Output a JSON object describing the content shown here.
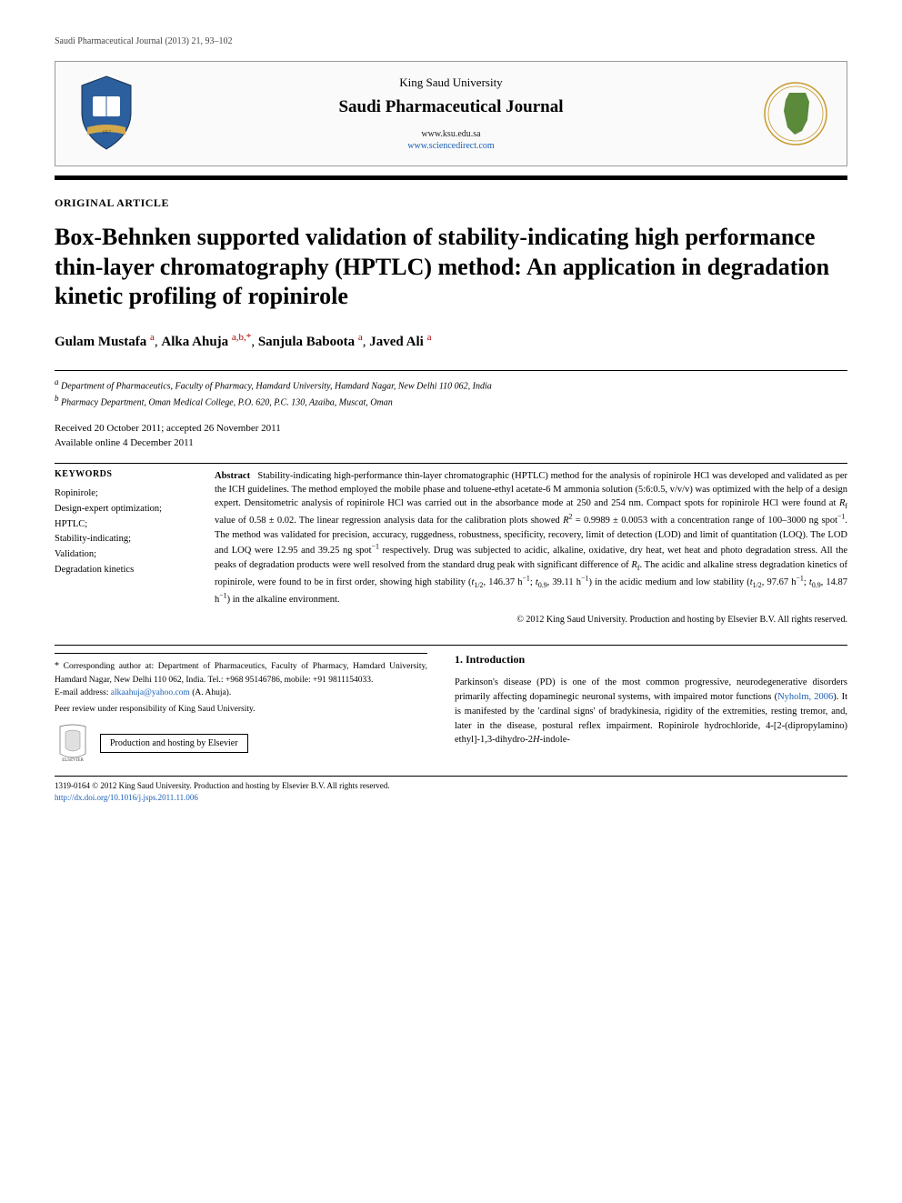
{
  "running_header": "Saudi Pharmaceutical Journal (2013) 21, 93–102",
  "journal_box": {
    "university": "King Saud University",
    "journal": "Saudi Pharmaceutical Journal",
    "url1": "www.ksu.edu.sa",
    "url2": "www.sciencedirect.com",
    "left_logo_colors": {
      "shield": "#2b5f9e",
      "ribbon": "#d4a94a",
      "book": "#ffffff"
    },
    "right_logo_colors": {
      "map": "#5a8a3a",
      "border": "#c79a2e"
    }
  },
  "article_type": "ORIGINAL ARTICLE",
  "title": "Box-Behnken supported validation of stability-indicating high performance thin-layer chromatography (HPTLC) method: An application in degradation kinetic profiling of ropinirole",
  "authors": [
    {
      "name": "Gulam Mustafa",
      "aff": "a"
    },
    {
      "name": "Alka Ahuja",
      "aff": "a,b,*"
    },
    {
      "name": "Sanjula Baboota",
      "aff": "a"
    },
    {
      "name": "Javed Ali",
      "aff": "a"
    }
  ],
  "affiliations": [
    {
      "label": "a",
      "text": "Department of Pharmaceutics, Faculty of Pharmacy, Hamdard University, Hamdard Nagar, New Delhi 110 062, India"
    },
    {
      "label": "b",
      "text": "Pharmacy Department, Oman Medical College, P.O. 620, P.C. 130, Azaiba, Muscat, Oman"
    }
  ],
  "dates": {
    "received_accepted": "Received 20 October 2011; accepted 26 November 2011",
    "online": "Available online 4 December 2011"
  },
  "keywords_heading": "KEYWORDS",
  "keywords": [
    "Ropinirole;",
    "Design-expert optimization;",
    "HPTLC;",
    "Stability-indicating;",
    "Validation;",
    "Degradation kinetics"
  ],
  "abstract": {
    "label": "Abstract",
    "body_html": "Stability-indicating high-performance thin-layer chromatographic (HPTLC) method for the analysis of ropinirole HCl was developed and validated as per the ICH guidelines. The method employed the mobile phase and toluene-ethyl acetate-6 M ammonia solution (5:6:0.5, v/v/v) was optimized with the help of a design expert. Densitometric analysis of ropinirole HCl was carried out in the absorbance mode at 250 and 254 nm. Compact spots for ropinirole HCl were found at <i>R</i><sub>f</sub> value of 0.58 ± 0.02. The linear regression analysis data for the calibration plots showed <i>R</i><sup>2</sup> = 0.9989 ± 0.0053 with a concentration range of 100–3000 ng spot<sup>−1</sup>. The method was validated for precision, accuracy, ruggedness, robustness, specificity, recovery, limit of detection (LOD) and limit of quantitation (LOQ). The LOD and LOQ were 12.95 and 39.25 ng spot<sup>−1</sup> respectively. Drug was subjected to acidic, alkaline, oxidative, dry heat, wet heat and photo degradation stress. All the peaks of degradation products were well resolved from the standard drug peak with significant difference of <i>R</i><sub>f</sub>. The acidic and alkaline stress degradation kinetics of ropinirole, were found to be in first order, showing high stability (<i>t</i><sub>1/2</sub>, 146.37 h<sup>−1</sup>; <i>t</i><sub>0.9</sub>, 39.11 h<sup>−1</sup>) in the acidic medium and low stability (<i>t</i><sub>1/2</sub>, 97.67 h<sup>−1</sup>; <i>t</i><sub>0.9</sub>, 14.87 h<sup>−1</sup>) in the alkaline environment."
  },
  "copyright": "© 2012 King Saud University. Production and hosting by Elsevier B.V. All rights reserved.",
  "corresponding": {
    "text": "Corresponding author at: Department of Pharmaceutics, Faculty of Pharmacy, Hamdard University, Hamdard Nagar, New Delhi 110 062, India. Tel.: +968 95146786, mobile: +91 9811154033.",
    "email_label": "E-mail address:",
    "email": "alkaahuja@yahoo.com",
    "email_who": "(A. Ahuja)."
  },
  "peer_review": "Peer review under responsibility of King Saud University.",
  "production_hosting": "Production and hosting by Elsevier",
  "elsevier_logo_color": "#e87722",
  "intro": {
    "heading": "1. Introduction",
    "body_html": "Parkinson's disease (PD) is one of the most common progressive, neurodegenerative disorders primarily affecting dopaminegic neuronal systems, with impaired motor functions (<span class=\"cite\">Nyholm, 2006</span>). It is manifested by the 'cardinal signs' of bradykinesia, rigidity of the extremities, resting tremor, and, later in the disease, postural reflex impairment. Ropinirole hydrochloride, 4-[2-(dipropylamino) ethyl]-1,3-dihydro-2<i>H</i>-indole-"
  },
  "footer": {
    "line1": "1319-0164 © 2012 King Saud University. Production and hosting by Elsevier B.V. All rights reserved.",
    "doi": "http://dx.doi.org/10.1016/j.jsps.2011.11.006"
  },
  "colors": {
    "aff_ref": "#b00000",
    "link": "#1a5fb4",
    "text": "#000000",
    "bg": "#ffffff"
  }
}
